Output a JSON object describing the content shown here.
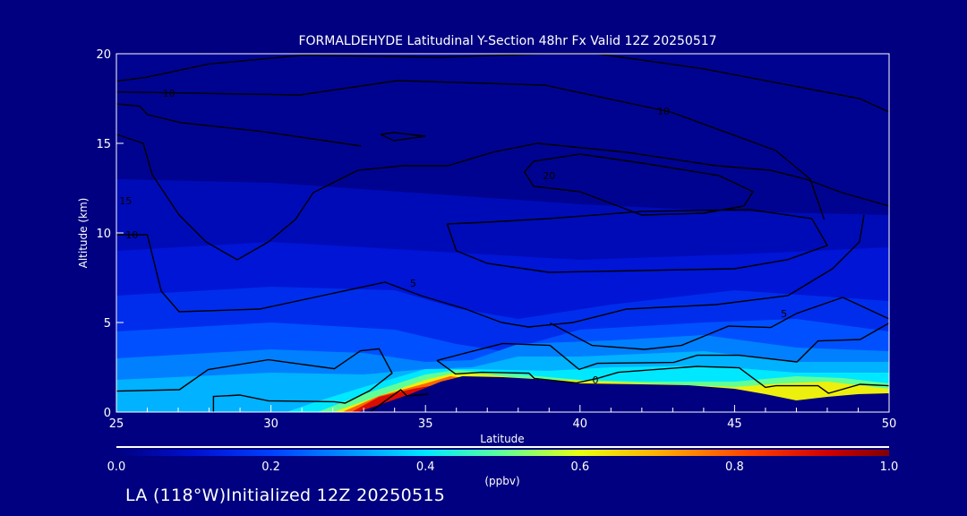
{
  "chart_data": {
    "type": "heatmap",
    "title": "FORMALDEHYDE Latitudinal Y-Section 48hr  Fx Valid 12Z 20250517",
    "xlabel": "Latitude",
    "ylabel": "Altitude (km)",
    "xlim": [
      25,
      50
    ],
    "ylim": [
      0,
      20
    ],
    "xticks": [
      "25",
      "30",
      "35",
      "40",
      "45",
      "50"
    ],
    "yticks": [
      "0",
      "5",
      "10",
      "15",
      "20"
    ],
    "colorbar": {
      "range": [
        0,
        1
      ],
      "ticks": [
        "0.0",
        "0.2",
        "0.4",
        "0.6",
        "0.8",
        "1.0"
      ],
      "units": "(ppbv)"
    },
    "filled_layers": [
      {
        "value": 0.07,
        "top": [
          [
            25,
            13
          ],
          [
            30,
            12.8
          ],
          [
            35,
            12.2
          ],
          [
            40,
            11.6
          ],
          [
            45,
            11.2
          ],
          [
            50,
            11
          ]
        ]
      },
      {
        "value": 0.11,
        "top": [
          [
            25,
            9
          ],
          [
            30,
            9.5
          ],
          [
            35,
            9
          ],
          [
            40,
            8.5
          ],
          [
            45,
            8.8
          ],
          [
            50,
            9.2
          ]
        ]
      },
      {
        "value": 0.16,
        "top": [
          [
            25,
            6.5
          ],
          [
            30,
            7
          ],
          [
            34,
            6.8
          ],
          [
            36,
            5.8
          ],
          [
            38,
            5.2
          ],
          [
            41,
            6
          ],
          [
            45,
            6.8
          ],
          [
            50,
            6.2
          ]
        ]
      },
      {
        "value": 0.22,
        "top": [
          [
            25,
            4.5
          ],
          [
            30,
            5
          ],
          [
            34,
            4.6
          ],
          [
            36,
            3.8
          ],
          [
            37.5,
            3.4
          ],
          [
            40,
            4.6
          ],
          [
            44,
            5
          ],
          [
            47,
            5.2
          ],
          [
            50,
            4.5
          ]
        ]
      },
      {
        "value": 0.28,
        "top": [
          [
            25,
            3
          ],
          [
            30,
            3.5
          ],
          [
            33,
            3.3
          ],
          [
            35,
            2.8
          ],
          [
            36.5,
            2.9
          ],
          [
            38,
            3.8
          ],
          [
            41,
            4
          ],
          [
            44,
            4.3
          ],
          [
            47,
            3.6
          ],
          [
            50,
            3.4
          ]
        ]
      },
      {
        "value": 0.34,
        "top": [
          [
            25,
            1.8
          ],
          [
            30,
            2.2
          ],
          [
            33,
            2.1
          ],
          [
            35,
            2.4
          ],
          [
            36.5,
            2.5
          ],
          [
            38,
            3.1
          ],
          [
            40,
            3.1
          ],
          [
            44,
            3.4
          ],
          [
            47,
            2.8
          ],
          [
            50,
            2.8
          ]
        ]
      },
      {
        "value": 0.4,
        "top": [
          [
            30.5,
            0
          ],
          [
            31.5,
            0.6
          ],
          [
            33,
            1.4
          ],
          [
            35,
            2.4
          ],
          [
            36.5,
            2.4
          ],
          [
            39,
            2.3
          ],
          [
            41,
            2.5
          ],
          [
            44,
            2.6
          ],
          [
            47,
            2.2
          ],
          [
            50,
            2.2
          ]
        ]
      },
      {
        "value": 0.5,
        "top": [
          [
            31.5,
            0
          ],
          [
            33,
            1.0
          ],
          [
            35,
            2.1
          ],
          [
            36,
            2.35
          ],
          [
            38,
            2.1
          ],
          [
            40,
            1.8
          ],
          [
            42,
            1.7
          ],
          [
            45,
            1.7
          ],
          [
            47,
            2.0
          ],
          [
            48.5,
            1.9
          ],
          [
            50,
            1.6
          ]
        ]
      },
      {
        "value": 0.62,
        "top": [
          [
            32,
            0
          ],
          [
            33.5,
            0.9
          ],
          [
            35,
            1.8
          ],
          [
            36,
            2.2
          ],
          [
            37,
            2.1
          ],
          [
            38,
            1.9
          ],
          [
            45,
            1.4
          ],
          [
            46.5,
            1.6
          ],
          [
            48,
            1.7
          ],
          [
            50,
            1.3
          ]
        ]
      },
      {
        "value": 0.78,
        "top": [
          [
            32.3,
            0
          ],
          [
            33.5,
            0.9
          ],
          [
            35,
            1.6
          ],
          [
            35.8,
            2.0
          ],
          [
            36.3,
            1.9
          ],
          [
            37,
            1.8
          ]
        ]
      },
      {
        "value": 0.9,
        "top": [
          [
            32.6,
            0
          ],
          [
            33.5,
            0.85
          ],
          [
            34.6,
            1.3
          ],
          [
            35.3,
            1.5
          ],
          [
            35.8,
            1.7
          ]
        ]
      }
    ],
    "terrain": [
      [
        32.8,
        0
      ],
      [
        33.5,
        0.4
      ],
      [
        34.5,
        1.0
      ],
      [
        35.5,
        1.7
      ],
      [
        36.2,
        2.0
      ],
      [
        37.5,
        1.95
      ],
      [
        38.5,
        1.85
      ],
      [
        40,
        1.6
      ],
      [
        42,
        1.55
      ],
      [
        43.5,
        1.5
      ],
      [
        45,
        1.3
      ],
      [
        46,
        1.0
      ],
      [
        47,
        0.65
      ],
      [
        48,
        0.85
      ],
      [
        49,
        1.0
      ],
      [
        50,
        1.05
      ],
      [
        50,
        0
      ]
    ],
    "contours": [
      [
        [
          25,
          18.47
        ],
        [
          25.93,
          18.67
        ],
        [
          27.97,
          19.42
        ],
        [
          31.03,
          19.92
        ],
        [
          35.45,
          19.8
        ],
        [
          38.85,
          20
        ],
        [
          40.55,
          20
        ],
        [
          43.95,
          19.17
        ],
        [
          49.04,
          17.5
        ],
        [
          50,
          16.75
        ]
      ],
      [
        [
          25,
          17.87
        ],
        [
          30.94,
          17.7
        ],
        [
          34.09,
          18.5
        ],
        [
          38.85,
          18.25
        ],
        [
          42.93,
          16.75
        ],
        [
          46.33,
          14.6
        ],
        [
          47.45,
          13
        ],
        [
          47.9,
          10.75
        ]
      ],
      [
        [
          25,
          17.2
        ],
        [
          25.75,
          17.08
        ],
        [
          26.01,
          16.6
        ],
        [
          27.11,
          16.15
        ],
        [
          29.66,
          15.67
        ],
        [
          31.55,
          15.2
        ],
        [
          32.91,
          14.85
        ]
      ],
      [
        [
          33.55,
          15.5
        ],
        [
          33.98,
          15.6
        ],
        [
          35,
          15.4
        ],
        [
          33.98,
          15.15
        ],
        [
          33.55,
          15.5
        ]
      ],
      [
        [
          25,
          15.5
        ],
        [
          25.87,
          15
        ],
        [
          26.16,
          13.25
        ],
        [
          27.03,
          11
        ],
        [
          27.9,
          9.5
        ],
        [
          28.91,
          8.5
        ],
        [
          29.92,
          9.5
        ],
        [
          30.79,
          10.75
        ],
        [
          31.37,
          12.25
        ],
        [
          32.82,
          13.5
        ],
        [
          34.27,
          13.75
        ],
        [
          35.72,
          13.75
        ],
        [
          37.17,
          14.5
        ],
        [
          38.62,
          15
        ],
        [
          41.51,
          14.5
        ],
        [
          44.41,
          13.75
        ],
        [
          46.15,
          13.5
        ],
        [
          47.31,
          13
        ],
        [
          48.47,
          12.25
        ],
        [
          50,
          11.5
        ]
      ],
      [
        [
          38.2,
          13.4
        ],
        [
          38.5,
          12.6
        ],
        [
          40,
          12.3
        ],
        [
          42,
          11
        ],
        [
          44,
          11.1
        ],
        [
          45.3,
          11.5
        ],
        [
          45.6,
          12.3
        ],
        [
          44.5,
          13.2
        ],
        [
          42,
          13.9
        ],
        [
          40,
          14.4
        ],
        [
          38.5,
          14
        ],
        [
          38.2,
          13.4
        ]
      ],
      [
        [
          35.7,
          10.5
        ],
        [
          36,
          9
        ],
        [
          37,
          8.3
        ],
        [
          39,
          7.8
        ],
        [
          42,
          7.9
        ],
        [
          45,
          8
        ],
        [
          46.7,
          8.5
        ],
        [
          48,
          9.3
        ],
        [
          47.5,
          10.8
        ],
        [
          45.5,
          11.3
        ],
        [
          42,
          11.2
        ],
        [
          39,
          10.8
        ],
        [
          37,
          10.6
        ],
        [
          35.7,
          10.5
        ]
      ],
      [
        [
          25,
          9.9
        ],
        [
          26,
          9.9
        ],
        [
          26.45,
          6.75
        ],
        [
          27.03,
          5.6
        ],
        [
          29.63,
          5.75
        ],
        [
          31.66,
          6.5
        ],
        [
          33.69,
          7.25
        ],
        [
          34.85,
          6.5
        ],
        [
          36.3,
          5.75
        ],
        [
          37.46,
          5
        ],
        [
          38.33,
          4.75
        ],
        [
          39.77,
          5
        ],
        [
          41.51,
          5.75
        ],
        [
          44.41,
          6
        ],
        [
          46.73,
          6.5
        ],
        [
          48.17,
          8
        ],
        [
          49.04,
          9.5
        ],
        [
          49.19,
          11
        ]
      ],
      [
        [
          39.03,
          4.97
        ],
        [
          40.39,
          3.72
        ],
        [
          42.09,
          3.5
        ],
        [
          43.28,
          3.72
        ],
        [
          44.81,
          4.8
        ],
        [
          46.17,
          4.72
        ],
        [
          47,
          5.5
        ],
        [
          48.5,
          6.4
        ],
        [
          50,
          5.2
        ]
      ],
      [
        [
          35.37,
          2.88
        ],
        [
          36.48,
          3.38
        ],
        [
          37.5,
          3.83
        ],
        [
          39.03,
          3.72
        ],
        [
          39.97,
          2.38
        ],
        [
          40.56,
          2.72
        ],
        [
          43.03,
          2.77
        ],
        [
          43.79,
          3.17
        ],
        [
          45.15,
          3.17
        ],
        [
          47.02,
          2.8
        ],
        [
          47.7,
          3.97
        ],
        [
          49.06,
          4.05
        ],
        [
          50,
          4.97
        ]
      ],
      [
        [
          35.37,
          2.88
        ],
        [
          35.97,
          2.13
        ],
        [
          36.82,
          2.22
        ],
        [
          38.35,
          2.17
        ],
        [
          38.52,
          1.88
        ],
        [
          39.88,
          1.63
        ],
        [
          40.56,
          1.88
        ],
        [
          41.24,
          2.22
        ],
        [
          43.79,
          2.55
        ],
        [
          45.15,
          2.47
        ],
        [
          46,
          1.38
        ],
        [
          46.34,
          1.47
        ],
        [
          47.7,
          1.47
        ],
        [
          48.04,
          1.05
        ],
        [
          49.06,
          1.55
        ],
        [
          50,
          1.47
        ]
      ],
      [
        [
          25,
          1.17
        ],
        [
          27.04,
          1.25
        ],
        [
          27.97,
          2.37
        ],
        [
          29.92,
          2.92
        ],
        [
          32.05,
          2.42
        ],
        [
          32.9,
          3.42
        ],
        [
          33.5,
          3.53
        ],
        [
          33.92,
          2.17
        ],
        [
          33.2,
          1.2
        ],
        [
          32.4,
          0.5
        ],
        [
          32.05,
          0.58
        ],
        [
          29.92,
          0.63
        ],
        [
          28.99,
          0.95
        ],
        [
          28.14,
          0.87
        ],
        [
          28.14,
          0
        ]
      ],
      [
        [
          33.2,
          0
        ],
        [
          34.2,
          1.25
        ],
        [
          34.4,
          0.9
        ],
        [
          35.1,
          1.0
        ]
      ]
    ],
    "contour_labels": [
      {
        "text": "10",
        "lat": 26.7,
        "alt": 17.8
      },
      {
        "text": "10",
        "lat": 42.7,
        "alt": 16.8
      },
      {
        "text": "20",
        "lat": 39.0,
        "alt": 13.2
      },
      {
        "text": "15",
        "lat": 25.3,
        "alt": 11.8
      },
      {
        "text": "10",
        "lat": 25.5,
        "alt": 9.9
      },
      {
        "text": "5",
        "lat": 34.6,
        "alt": 7.2
      },
      {
        "text": "5",
        "lat": 46.6,
        "alt": 5.5
      },
      {
        "text": "0",
        "lat": 40.5,
        "alt": 1.8
      }
    ]
  },
  "footer": "LA (118°W)Initialized 12Z 20250515"
}
